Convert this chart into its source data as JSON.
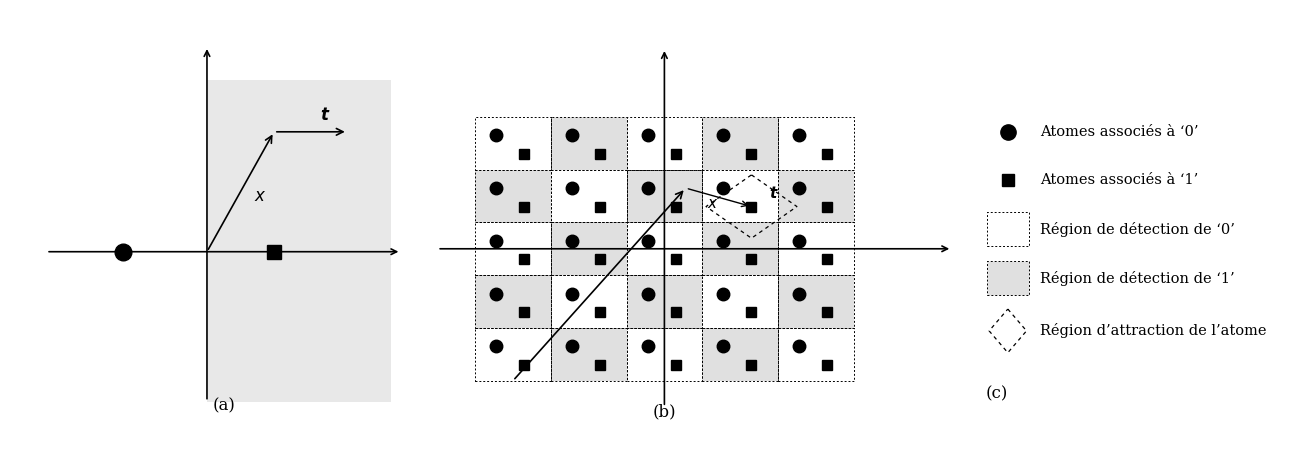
{
  "bg_color": "#ffffff",
  "gray_region_color": "#e8e8e8",
  "gray_cell_color": "#e0e0e0",
  "legend_texts": [
    "Atomes associés à ‘0’",
    "Atomes associés à ‘1’",
    "Région de détection de ‘0’",
    "Région de détection de ‘1’",
    "Région d’attraction de l’atome"
  ],
  "label_a": "(a)",
  "label_b": "(b)",
  "label_c": "(c)"
}
